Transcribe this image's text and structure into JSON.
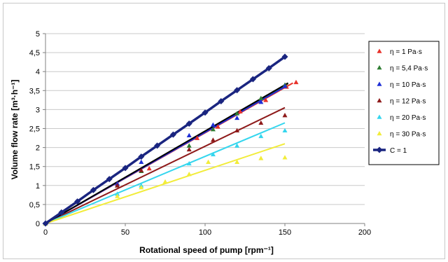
{
  "chart_data": {
    "type": "scatter",
    "xlabel": "Rotational speed of pump [rpm⁻¹]",
    "ylabel": "Volume flow rate [m³·h⁻¹]",
    "xlim": [
      0,
      200
    ],
    "ylim": [
      0,
      5
    ],
    "x_ticks": [
      "0",
      "50",
      "100",
      "150",
      "200"
    ],
    "y_ticks": [
      "0",
      "0,5",
      "1",
      "1,5",
      "2",
      "2,5",
      "3",
      "3,5",
      "4",
      "4,5",
      "5"
    ],
    "grid": "horizontal",
    "legend_position": "right",
    "series": [
      {
        "name": "η = 1 Pa·s",
        "color": "#e8312a",
        "marker": "triangle",
        "points": [
          [
            0,
            0
          ],
          [
            45,
            1.05
          ],
          [
            65,
            1.45
          ],
          [
            95,
            2.25
          ],
          [
            108,
            2.55
          ],
          [
            122,
            2.95
          ],
          [
            138,
            3.25
          ],
          [
            151,
            3.6
          ],
          [
            157,
            3.72
          ]
        ],
        "fit_end": [
          155,
          3.7
        ]
      },
      {
        "name": "η = 5,4 Pa·s",
        "color": "#2e7d32",
        "marker": "triangle",
        "points": [
          [
            0,
            0
          ],
          [
            45,
            1.0
          ],
          [
            60,
            1.38
          ],
          [
            90,
            2.05
          ],
          [
            105,
            2.48
          ],
          [
            120,
            2.9
          ],
          [
            135,
            3.3
          ],
          [
            150,
            3.65
          ]
        ],
        "fit_end": [
          152,
          3.68
        ]
      },
      {
        "name": "η = 10 Pa·s",
        "color": "#1e2fd6",
        "marker": "triangle",
        "points": [
          [
            0,
            0
          ],
          [
            45,
            1.05
          ],
          [
            60,
            1.62
          ],
          [
            90,
            2.32
          ],
          [
            105,
            2.6
          ],
          [
            120,
            2.78
          ],
          [
            135,
            3.2
          ],
          [
            150,
            3.62
          ]
        ],
        "fit_end": [
          150,
          3.6
        ]
      },
      {
        "name": "η = 12 Pa·s",
        "color": "#8e1a1a",
        "marker": "triangle",
        "points": [
          [
            0,
            0
          ],
          [
            45,
            1.0
          ],
          [
            60,
            1.4
          ],
          [
            90,
            1.95
          ],
          [
            105,
            2.2
          ],
          [
            120,
            2.45
          ],
          [
            135,
            2.65
          ],
          [
            150,
            2.85
          ]
        ],
        "fit_end": [
          150,
          3.05
        ]
      },
      {
        "name": "η = 20 Pa·s",
        "color": "#35d6ee",
        "marker": "triangle",
        "points": [
          [
            0,
            0
          ],
          [
            45,
            0.78
          ],
          [
            60,
            1.0
          ],
          [
            90,
            1.58
          ],
          [
            105,
            1.82
          ],
          [
            120,
            2.05
          ],
          [
            135,
            2.3
          ],
          [
            150,
            2.45
          ]
        ],
        "fit_end": [
          150,
          2.65
        ]
      },
      {
        "name": "η = 30 Pa·s",
        "color": "#f2ec3a",
        "marker": "triangle",
        "points": [
          [
            0,
            0
          ],
          [
            45,
            0.72
          ],
          [
            60,
            0.95
          ],
          [
            75,
            1.1
          ],
          [
            90,
            1.3
          ],
          [
            102,
            1.62
          ],
          [
            120,
            1.62
          ],
          [
            135,
            1.72
          ],
          [
            150,
            1.74
          ]
        ],
        "fit_end": [
          150,
          2.1
        ]
      },
      {
        "name": "C = 1",
        "color": "#1a2580",
        "marker": "diamond",
        "line": true,
        "points": [
          [
            0,
            0
          ],
          [
            10,
            0.29
          ],
          [
            20,
            0.58
          ],
          [
            30,
            0.88
          ],
          [
            40,
            1.17
          ],
          [
            50,
            1.46
          ],
          [
            60,
            1.76
          ],
          [
            70,
            2.05
          ],
          [
            80,
            2.34
          ],
          [
            90,
            2.63
          ],
          [
            100,
            2.92
          ],
          [
            110,
            3.22
          ],
          [
            120,
            3.51
          ],
          [
            130,
            3.8
          ],
          [
            140,
            4.09
          ],
          [
            150,
            4.39
          ]
        ]
      }
    ],
    "black_reference_line": {
      "from": [
        0,
        0
      ],
      "to": [
        152,
        3.7
      ]
    }
  }
}
